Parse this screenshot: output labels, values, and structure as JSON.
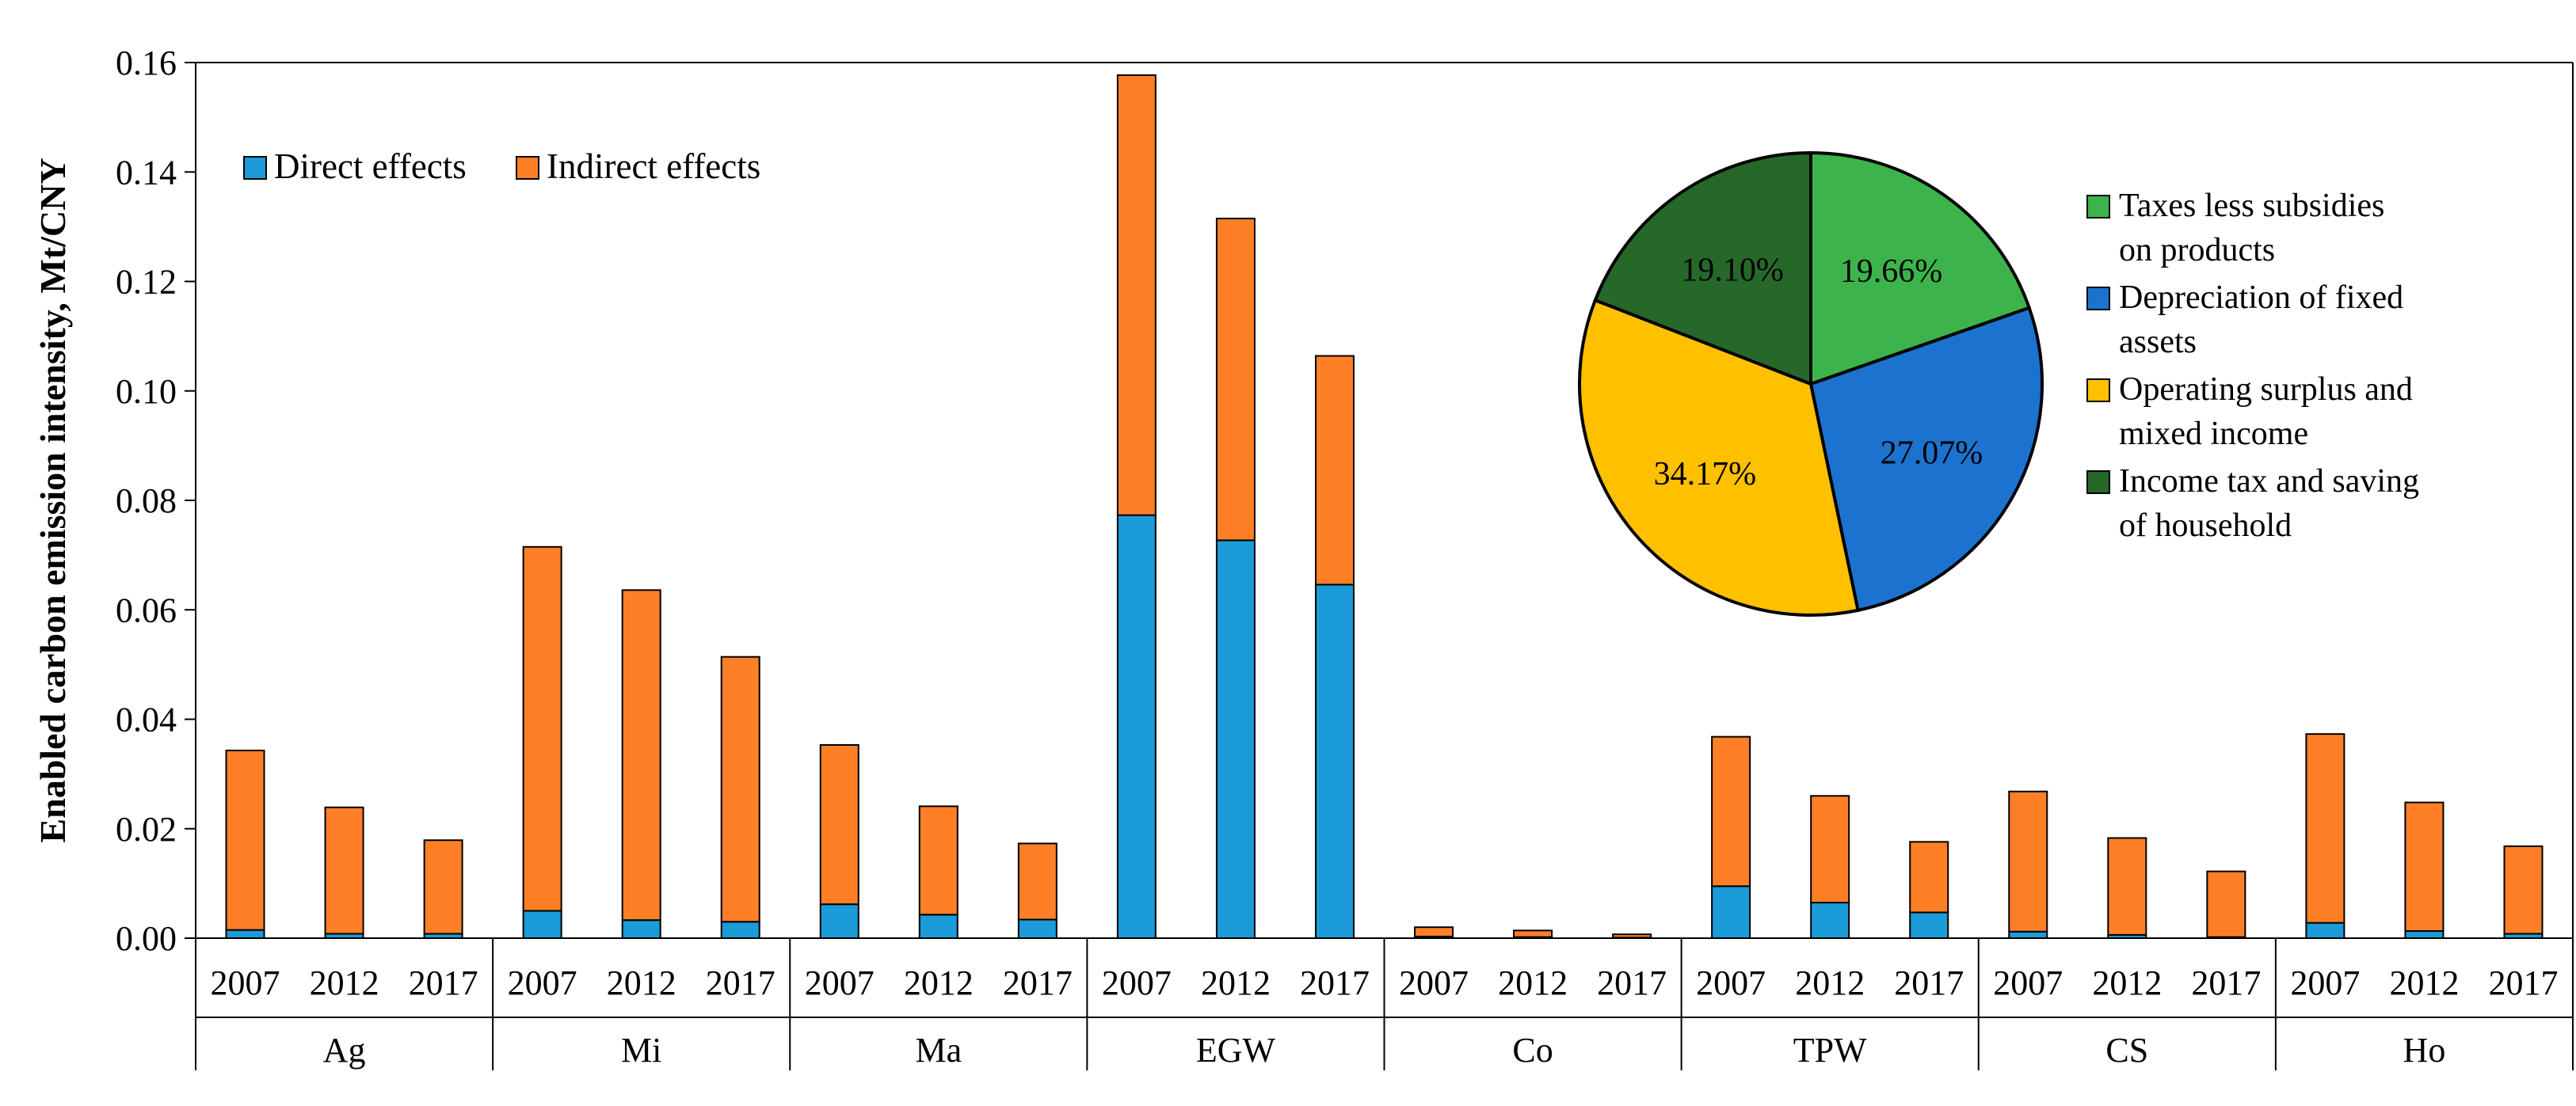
{
  "chart_data": [
    {
      "type": "bar",
      "stacked": true,
      "ylabel": "Enabled carbon emission intensity, Mt/CNY",
      "ylim": [
        0,
        0.16
      ],
      "yticks": [
        "0.00",
        "0.02",
        "0.04",
        "0.06",
        "0.08",
        "0.10",
        "0.12",
        "0.14",
        "0.16"
      ],
      "groups": [
        {
          "name": "Ag",
          "years": [
            "2007",
            "2012",
            "2017"
          ]
        },
        {
          "name": "Mi",
          "years": [
            "2007",
            "2012",
            "2017"
          ]
        },
        {
          "name": "Ma",
          "years": [
            "2007",
            "2012",
            "2017"
          ]
        },
        {
          "name": "EGW",
          "years": [
            "2007",
            "2012",
            "2017"
          ]
        },
        {
          "name": "Co",
          "years": [
            "2007",
            "2012",
            "2017"
          ]
        },
        {
          "name": "TPW",
          "years": [
            "2007",
            "2012",
            "2017"
          ]
        },
        {
          "name": "CS",
          "years": [
            "2007",
            "2012",
            "2017"
          ]
        },
        {
          "name": "Ho",
          "years": [
            "2007",
            "2012",
            "2017"
          ]
        }
      ],
      "series": [
        {
          "name": "Direct effects",
          "color": "#1b9bd7",
          "values": [
            0.0015,
            0.0008,
            0.0008,
            0.005,
            0.0033,
            0.003,
            0.0062,
            0.0043,
            0.0034,
            0.0773,
            0.0727,
            0.0646,
            0.0003,
            0.0002,
            0.0001,
            0.0095,
            0.0065,
            0.0047,
            0.0012,
            0.0006,
            0.0002,
            0.0028,
            0.0013,
            0.0008
          ]
        },
        {
          "name": "Indirect effects",
          "color": "#ff7f27",
          "values": [
            0.0328,
            0.0231,
            0.0171,
            0.0665,
            0.0603,
            0.0484,
            0.0291,
            0.0198,
            0.0139,
            0.0804,
            0.0588,
            0.0418,
            0.0017,
            0.0012,
            0.0006,
            0.0273,
            0.0195,
            0.0129,
            0.0256,
            0.0177,
            0.012,
            0.0345,
            0.0235,
            0.016
          ]
        }
      ],
      "legend": "top-left"
    },
    {
      "type": "pie",
      "slices": [
        {
          "label": "Taxes less subsidies on products",
          "legend_lines": [
            "Taxes less subsidies",
            "on products"
          ],
          "value": 19.66,
          "display": "19.66%",
          "color": "#3cb44b"
        },
        {
          "label": "Depreciation of fixed assets",
          "legend_lines": [
            "Depreciation of fixed",
            "assets"
          ],
          "value": 27.07,
          "display": "27.07%",
          "color": "#1c73cf"
        },
        {
          "label": "Operating surplus and mixed income",
          "legend_lines": [
            "Operating surplus and",
            "mixed income"
          ],
          "value": 34.17,
          "display": "34.17%",
          "color": "#ffc000"
        },
        {
          "label": "Income tax and saving of household",
          "legend_lines": [
            "Income tax and saving",
            "of household"
          ],
          "value": 19.1,
          "display": "19.10%",
          "color": "#26682a"
        }
      ],
      "legend": "right"
    }
  ]
}
